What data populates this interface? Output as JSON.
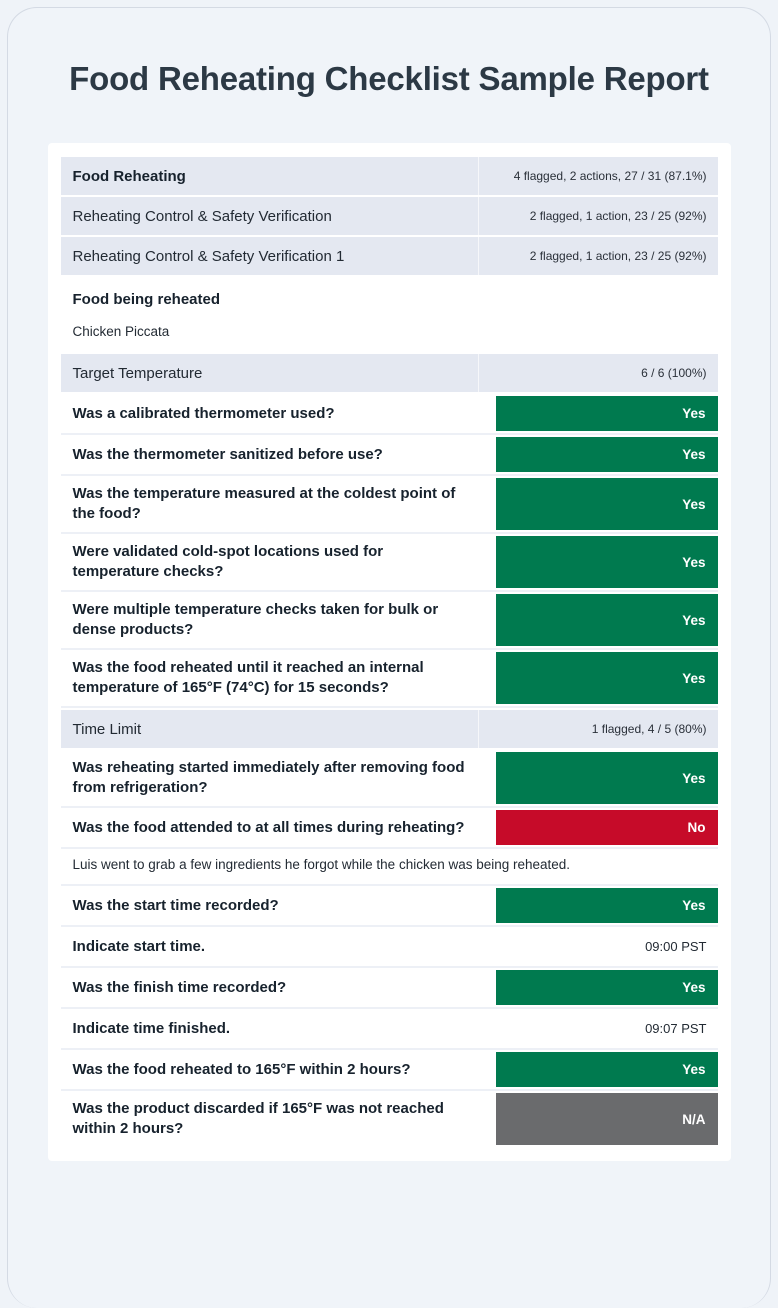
{
  "title": "Food Reheating Checklist Sample Report",
  "colors": {
    "green": "#007a4f",
    "red": "#c60b29",
    "na": "#6a6b6d",
    "section_bg": "#e4e8f1"
  },
  "rows": [
    {
      "kind": "section",
      "emphasis": true,
      "label": "Food Reheating",
      "stats": "4 flagged, 2 actions, 27 / 31 (87.1%)"
    },
    {
      "kind": "section",
      "emphasis": false,
      "label": "Reheating Control & Safety Verification",
      "stats": "2 flagged, 1 action, 23 / 25 (92%)"
    },
    {
      "kind": "section",
      "emphasis": false,
      "label": "Reheating Control & Safety Verification 1",
      "stats": "2 flagged, 1 action, 23 / 25 (92%)"
    },
    {
      "kind": "field",
      "label": "Food being reheated",
      "value": "Chicken Piccata"
    },
    {
      "kind": "section",
      "emphasis": false,
      "label": "Target Temperature",
      "stats": "6 / 6 (100%)"
    },
    {
      "kind": "choice",
      "label": "Was a calibrated thermometer used?",
      "answer": "Yes",
      "status": "green"
    },
    {
      "kind": "choice",
      "label": "Was the thermometer sanitized before use?",
      "answer": "Yes",
      "status": "green"
    },
    {
      "kind": "choice",
      "label": "Was the temperature measured at the coldest point of the food?",
      "answer": "Yes",
      "status": "green"
    },
    {
      "kind": "choice",
      "label": "Were validated cold-spot locations used for temperature checks?",
      "answer": "Yes",
      "status": "green"
    },
    {
      "kind": "choice",
      "label": "Were multiple temperature checks taken for bulk or dense products?",
      "answer": "Yes",
      "status": "green"
    },
    {
      "kind": "choice",
      "label": "Was the food reheated until it reached an internal temperature of 165°F (74°C) for 15 seconds?",
      "answer": "Yes",
      "status": "green"
    },
    {
      "kind": "section",
      "emphasis": false,
      "label": "Time Limit",
      "stats": "1 flagged, 4 / 5 (80%)"
    },
    {
      "kind": "choice",
      "label": "Was reheating started immediately after removing food from refrigeration?",
      "answer": "Yes",
      "status": "green"
    },
    {
      "kind": "choice",
      "label": "Was the food attended to at all times during reheating?",
      "answer": "No",
      "status": "red"
    },
    {
      "kind": "note",
      "text": "Luis went to grab a few ingredients he forgot while the chicken was being reheated."
    },
    {
      "kind": "choice",
      "label": "Was the start time recorded?",
      "answer": "Yes",
      "status": "green"
    },
    {
      "kind": "inline",
      "label": "Indicate start time.",
      "value": "09:00 PST"
    },
    {
      "kind": "choice",
      "label": "Was the finish time recorded?",
      "answer": "Yes",
      "status": "green"
    },
    {
      "kind": "inline",
      "label": "Indicate time finished.",
      "value": "09:07 PST"
    },
    {
      "kind": "choice",
      "label": "Was the food reheated to 165°F within 2 hours?",
      "answer": "Yes",
      "status": "green"
    },
    {
      "kind": "choice",
      "label": "Was the product discarded if 165°F was not reached within 2 hours?",
      "answer": "N/A",
      "status": "na"
    }
  ]
}
